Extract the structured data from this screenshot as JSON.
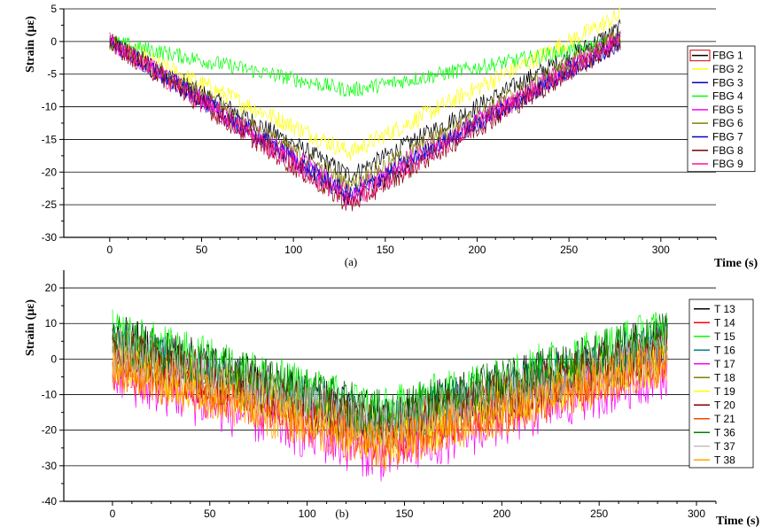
{
  "chart_data": [
    {
      "type": "line",
      "panel_label": "(a)",
      "xlabel": "Time (s)",
      "ylabel": "Strain (με)",
      "xlim": [
        -25,
        330
      ],
      "ylim": [
        -30,
        5
      ],
      "xticks": [
        0,
        50,
        100,
        150,
        200,
        250,
        300
      ],
      "yticks": [
        -30,
        -25,
        -20,
        -15,
        -10,
        -5,
        0,
        5
      ],
      "grid": "horizontal",
      "legend_position": "right",
      "series": [
        {
          "name": "FBG 1",
          "color": "#000000",
          "noise": 1.4,
          "x": [
            0,
            131,
            278
          ],
          "y": [
            0,
            -20.5,
            2
          ]
        },
        {
          "name": "FBG 2",
          "color": "#ffff00",
          "noise": 1.4,
          "x": [
            0,
            131,
            278
          ],
          "y": [
            0,
            -17,
            4
          ]
        },
        {
          "name": "FBG 3",
          "color": "#0000cc",
          "noise": 1.4,
          "x": [
            0,
            131,
            278
          ],
          "y": [
            0,
            -24,
            0
          ]
        },
        {
          "name": "FBG 4",
          "color": "#00ff00",
          "noise": 1.2,
          "x": [
            0,
            131,
            278
          ],
          "y": [
            0,
            -7.5,
            0
          ]
        },
        {
          "name": "FBG 5",
          "color": "#ff00ff",
          "noise": 1.4,
          "x": [
            0,
            131,
            278
          ],
          "y": [
            0,
            -23,
            0.5
          ]
        },
        {
          "name": "FBG 6",
          "color": "#808000",
          "noise": 1.4,
          "x": [
            0,
            131,
            278
          ],
          "y": [
            0,
            -22,
            1
          ]
        },
        {
          "name": "FBG 7",
          "color": "#0000cc",
          "noise": 1.4,
          "x": [
            0,
            131,
            278
          ],
          "y": [
            0,
            -23.5,
            0
          ]
        },
        {
          "name": "FBG 8",
          "color": "#800000",
          "noise": 1.6,
          "x": [
            0,
            131,
            278
          ],
          "y": [
            0,
            -25,
            0
          ]
        },
        {
          "name": "FBG 9",
          "color": "#ff1493",
          "noise": 1.6,
          "x": [
            0,
            131,
            278
          ],
          "y": [
            0,
            -24.5,
            0.5
          ]
        }
      ]
    },
    {
      "type": "line",
      "panel_label": "(b)",
      "xlabel": "Time (s)",
      "ylabel": "Strain (με)",
      "xlim": [
        -25,
        310
      ],
      "ylim": [
        -40,
        25
      ],
      "xticks": [
        0,
        50,
        100,
        150,
        200,
        250,
        300
      ],
      "yticks": [
        -40,
        -30,
        -20,
        -10,
        0,
        10,
        20
      ],
      "grid": "horizontal",
      "legend_position": "right",
      "series": [
        {
          "name": "T 13",
          "color": "#000000",
          "noise": 7,
          "x": [
            0,
            140,
            285
          ],
          "y": [
            6,
            -17,
            6
          ]
        },
        {
          "name": "T 14",
          "color": "#ff0000",
          "noise": 7,
          "x": [
            0,
            140,
            285
          ],
          "y": [
            2,
            -22,
            2
          ]
        },
        {
          "name": "T 15",
          "color": "#00ff00",
          "noise": 7,
          "x": [
            0,
            140,
            285
          ],
          "y": [
            7,
            -15,
            8
          ]
        },
        {
          "name": "T 16",
          "color": "#008080",
          "noise": 7,
          "x": [
            0,
            140,
            285
          ],
          "y": [
            4,
            -18,
            4
          ]
        },
        {
          "name": "T 17",
          "color": "#ff00ff",
          "noise": 8,
          "x": [
            0,
            140,
            285
          ],
          "y": [
            -4,
            -27,
            -3
          ]
        },
        {
          "name": "T 18",
          "color": "#808000",
          "noise": 7,
          "x": [
            0,
            140,
            285
          ],
          "y": [
            2,
            -20,
            2
          ]
        },
        {
          "name": "T 19",
          "color": "#ffff00",
          "noise": 7,
          "x": [
            0,
            140,
            285
          ],
          "y": [
            0,
            -22,
            0
          ]
        },
        {
          "name": "T 20",
          "color": "#800000",
          "noise": 7,
          "x": [
            0,
            140,
            285
          ],
          "y": [
            3,
            -19,
            3
          ]
        },
        {
          "name": "T 21",
          "color": "#ff4500",
          "noise": 7,
          "x": [
            0,
            140,
            285
          ],
          "y": [
            -2,
            -24,
            -1
          ]
        },
        {
          "name": "T 36",
          "color": "#008000",
          "noise": 7,
          "x": [
            0,
            140,
            285
          ],
          "y": [
            6,
            -16,
            7
          ]
        },
        {
          "name": "T 37",
          "color": "#c0c0c0",
          "noise": 7,
          "x": [
            0,
            140,
            285
          ],
          "y": [
            3,
            -19,
            3
          ]
        },
        {
          "name": "T 38",
          "color": "#ffa500",
          "noise": 7,
          "x": [
            0,
            140,
            285
          ],
          "y": [
            -2,
            -25,
            -1
          ]
        }
      ]
    }
  ]
}
